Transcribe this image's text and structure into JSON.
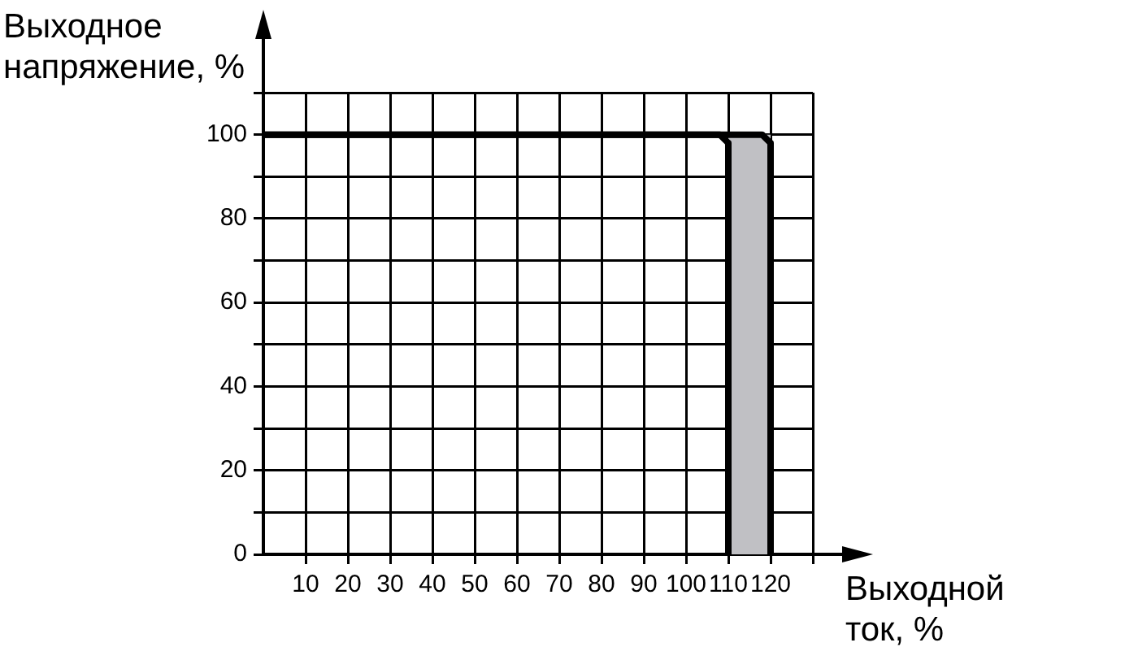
{
  "chart_data": {
    "type": "line",
    "ylabel": "Выходное напряжение, %",
    "xlabel": "Выходной ток, %",
    "series": [
      {
        "color": "#000000",
        "x": [
          0,
          108,
          110,
          110
        ],
        "values": [
          100,
          100,
          98,
          0
        ]
      },
      {
        "color": "#000000",
        "x": [
          0,
          118,
          120,
          120
        ],
        "values": [
          100,
          100,
          98,
          0
        ]
      }
    ],
    "bands": [
      {
        "axis": "x",
        "from": 110,
        "to": 120,
        "color": "#c0c0c4"
      }
    ],
    "xlim": [
      0,
      130
    ],
    "xticks": [
      10,
      20,
      30,
      40,
      50,
      60,
      70,
      80,
      90,
      100,
      110,
      120,
      {
        "value": 130,
        "label": null
      }
    ],
    "ylim": [
      0,
      110
    ],
    "yticks": [
      0,
      {
        "value": 10,
        "label": null
      },
      20,
      {
        "value": 30,
        "label": null
      },
      40,
      {
        "value": 50,
        "label": null
      },
      60,
      {
        "value": 70,
        "label": null
      },
      80,
      {
        "value": 90,
        "label": null
      },
      100,
      {
        "value": 110,
        "label": null
      }
    ],
    "grid": true,
    "legend": false,
    "marker": "none",
    "line_style": "solid"
  }
}
